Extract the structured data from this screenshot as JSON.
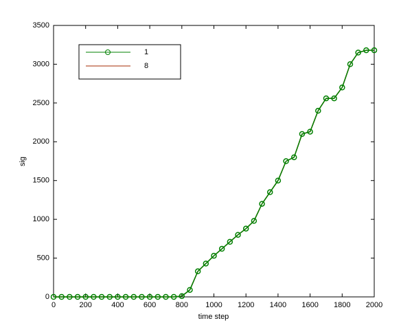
{
  "chart_data": {
    "type": "line",
    "xlabel": "time step",
    "ylabel": "sig",
    "x": [
      0,
      50,
      100,
      150,
      200,
      250,
      300,
      350,
      400,
      450,
      500,
      550,
      600,
      650,
      700,
      750,
      800,
      850,
      900,
      950,
      1000,
      1050,
      1100,
      1150,
      1200,
      1250,
      1300,
      1350,
      1400,
      1450,
      1500,
      1550,
      1600,
      1650,
      1700,
      1750,
      1800,
      1850,
      1900,
      1950,
      2000
    ],
    "series": [
      {
        "name": "1",
        "color": "#008000",
        "marker": "circle",
        "values": [
          0,
          0,
          0,
          0,
          0,
          0,
          0,
          0,
          0,
          0,
          0,
          0,
          0,
          0,
          0,
          0,
          10,
          90,
          330,
          430,
          530,
          620,
          710,
          800,
          880,
          980,
          1200,
          1350,
          1500,
          1750,
          1800,
          2100,
          2130,
          2400,
          2560,
          2560,
          2700,
          3000,
          3150,
          3180,
          3180
        ]
      },
      {
        "name": "8",
        "color": "#a52a00",
        "marker": "none",
        "values": [
          0,
          0,
          0,
          0,
          0,
          0,
          0,
          0,
          0,
          0,
          0,
          0,
          0,
          0,
          0,
          0,
          10,
          90,
          330,
          430,
          530,
          620,
          710,
          800,
          880,
          980,
          1200,
          1350,
          1500,
          1750,
          1800,
          2100,
          2130,
          2400,
          2560,
          2560,
          2700,
          3000,
          3150,
          3180,
          3180
        ]
      }
    ],
    "xlim": [
      0,
      2000
    ],
    "xticks": [
      0,
      200,
      400,
      600,
      800,
      1000,
      1200,
      1400,
      1600,
      1800,
      2000
    ],
    "ylim": [
      0,
      3500
    ],
    "yticks": [
      0,
      500,
      1000,
      1500,
      2000,
      2500,
      3000,
      3500
    ],
    "grid": false,
    "legend_position": "upper-left"
  }
}
